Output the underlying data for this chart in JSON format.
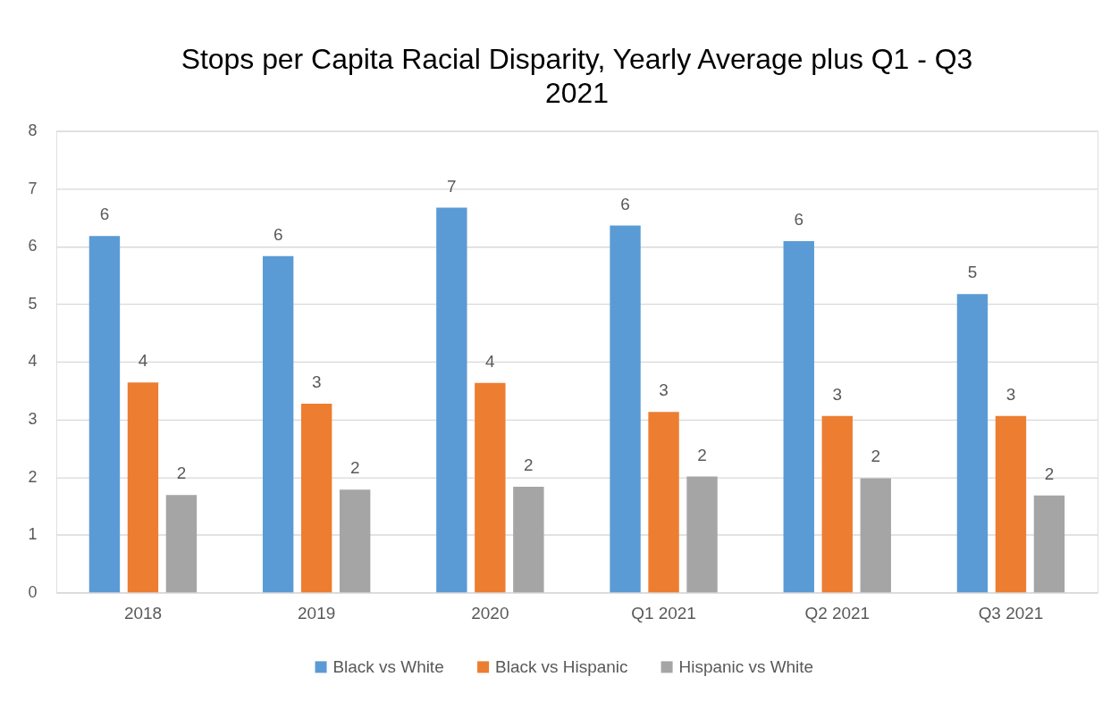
{
  "chart_data": {
    "type": "bar",
    "title": "Stops per Capita Racial Disparity, Yearly Average plus Q1 - Q3 2021",
    "categories": [
      "2018",
      "2019",
      "2020",
      "Q1 2021",
      "Q2 2021",
      "Q3 2021"
    ],
    "series": [
      {
        "name": "Black vs White",
        "color": "#5b9bd5",
        "values": [
          6.18,
          5.83,
          6.67,
          6.36,
          6.09,
          5.17
        ],
        "value_labels": [
          "6",
          "6",
          "7",
          "6",
          "6",
          "5"
        ]
      },
      {
        "name": "Black vs Hispanic",
        "color": "#ed7d31",
        "values": [
          3.64,
          3.27,
          3.63,
          3.13,
          3.06,
          3.06
        ],
        "value_labels": [
          "4",
          "3",
          "4",
          "3",
          "3",
          "3"
        ]
      },
      {
        "name": "Hispanic vs White",
        "color": "#a5a5a5",
        "values": [
          1.69,
          1.78,
          1.83,
          2.01,
          1.98,
          1.68
        ],
        "value_labels": [
          "2",
          "2",
          "2",
          "2",
          "2",
          "2"
        ]
      }
    ],
    "ylim": [
      0,
      8
    ],
    "yticks": [
      0,
      1,
      2,
      3,
      4,
      5,
      6,
      7,
      8
    ],
    "grid": "y",
    "legend": "bottom"
  }
}
